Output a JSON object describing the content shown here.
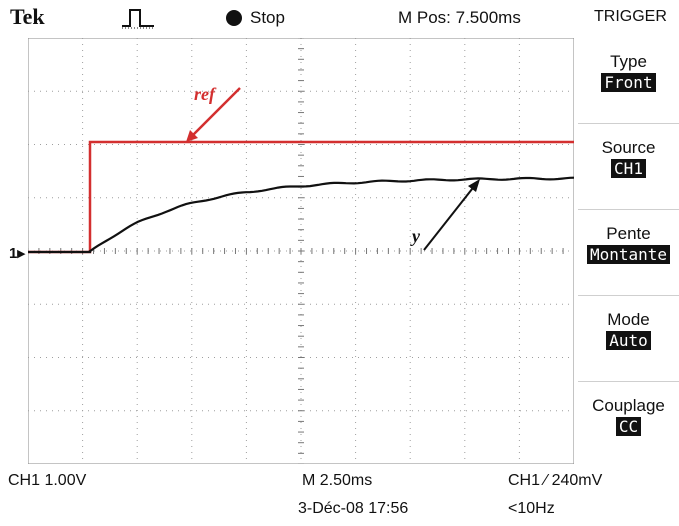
{
  "header": {
    "brand": "Tek",
    "run_state": "Stop",
    "horizontal_position": "M Pos: 7.500ms",
    "menu_title": "TRIGGER"
  },
  "screen": {
    "channel_marker": "1",
    "ref_label": "ref",
    "y_label": "y",
    "colors": {
      "ref_trace": "#d32f2f",
      "y_trace": "#111111",
      "grid": "#9e9e9e"
    }
  },
  "menu": {
    "items": [
      {
        "label": "Type",
        "value": "Front"
      },
      {
        "label": "Source",
        "value": "CH1"
      },
      {
        "label": "Pente",
        "value": "Montante"
      },
      {
        "label": "Mode",
        "value": "Auto"
      },
      {
        "label": "Couplage",
        "value": "CC"
      }
    ]
  },
  "status": {
    "ch1_scale": "CH1  1.00V",
    "timebase": "M 2.50ms",
    "trigger_level": "CH1 ∕ 240mV",
    "date": "3-Déc-08 17:56",
    "frequency": "<10Hz"
  }
}
